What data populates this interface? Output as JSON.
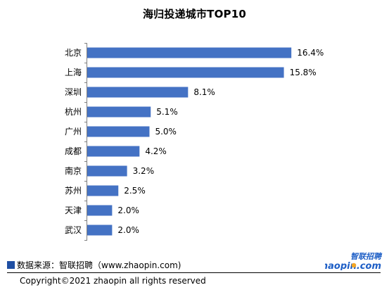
{
  "chart_data": {
    "type": "bar",
    "orientation": "horizontal",
    "title": "海归投递城市TOP10",
    "categories": [
      "北京",
      "上海",
      "深圳",
      "杭州",
      "广州",
      "成都",
      "南京",
      "苏州",
      "天津",
      "武汉"
    ],
    "values": [
      16.4,
      15.8,
      8.1,
      5.1,
      5.0,
      4.2,
      3.2,
      2.5,
      2.0,
      2.0
    ],
    "value_labels": [
      "16.4%",
      "15.8%",
      "8.1%",
      "5.1%",
      "5.0%",
      "4.2%",
      "3.2%",
      "2.5%",
      "2.0%",
      "2.0%"
    ],
    "xlim": [
      0,
      18
    ],
    "grid": false,
    "legend": "none",
    "bar_color": "#4472c4"
  },
  "footer": {
    "source": "数据来源：智联招聘（www.zhaopin.com)",
    "copyright": "Copyright©2021 zhaopin all rights reserved",
    "marker_color": "#1f4fa3"
  },
  "logo": {
    "text_cn": "智联招聘",
    "text_en": "zhaopin.com",
    "color_primary": "#1d5ec6",
    "color_accent": "#f5a623"
  }
}
